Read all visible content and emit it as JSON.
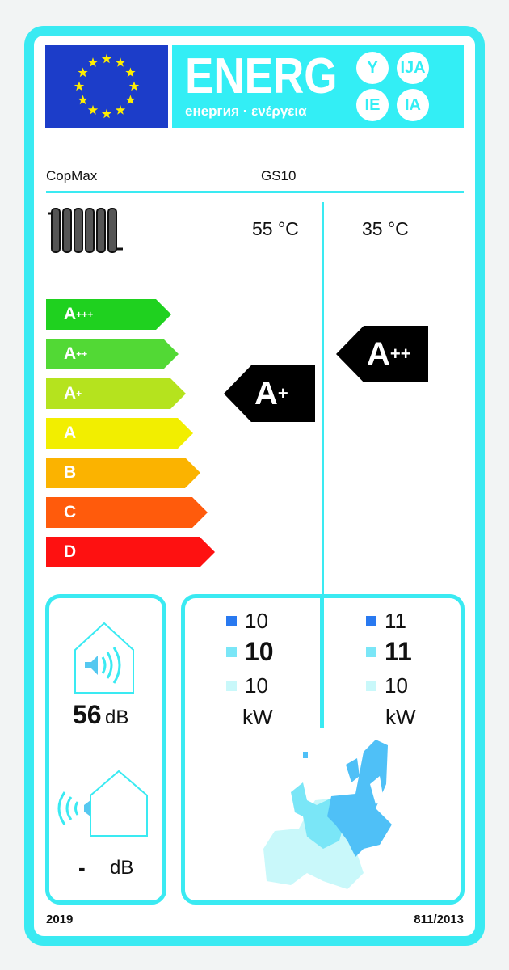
{
  "header": {
    "logo_text": "ENERG",
    "subtitle": "енергия · ενέργεια",
    "language_suffixes": [
      "Y",
      "IJA",
      "IE",
      "IA"
    ]
  },
  "product": {
    "supplier": "CopMax",
    "model": "GS10"
  },
  "temperatures": {
    "medium": "55 °C",
    "low": "35 °C"
  },
  "scale": [
    {
      "label": "A",
      "sup": "+++",
      "color": "#1fd11f"
    },
    {
      "label": "A",
      "sup": "++",
      "color": "#52d935"
    },
    {
      "label": "A",
      "sup": "+",
      "color": "#b5e31e"
    },
    {
      "label": "A",
      "sup": "",
      "color": "#f2ee00"
    },
    {
      "label": "B",
      "sup": "",
      "color": "#fbb300"
    },
    {
      "label": "C",
      "sup": "",
      "color": "#ff5b0c"
    },
    {
      "label": "D",
      "sup": "",
      "color": "#fe1111"
    }
  ],
  "ratings": {
    "medium": {
      "label": "A",
      "sup": "+"
    },
    "low": {
      "label": "A",
      "sup": "++"
    }
  },
  "noise": {
    "indoor_value": "56",
    "indoor_unit": "dB",
    "outdoor_value": "-",
    "outdoor_unit": "dB"
  },
  "heat_output": {
    "medium": {
      "cold": "10",
      "average": "10",
      "warm": "10",
      "unit": "kW"
    },
    "low": {
      "cold": "11",
      "average": "11",
      "warm": "10",
      "unit": "kW"
    },
    "zone_colors": {
      "cold": "#2979f0",
      "average": "#7ae6f7",
      "warm": "#c9f8fa"
    }
  },
  "footer": {
    "year": "2019",
    "regulation": "811/2013"
  }
}
